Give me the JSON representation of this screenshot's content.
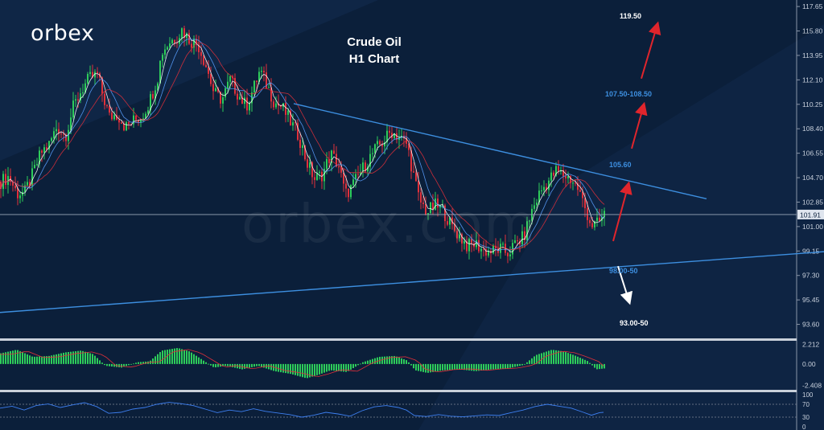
{
  "brand": {
    "logo_text": "orbex",
    "watermark_text": "orbex.com"
  },
  "chart_data": {
    "type": "candlestick",
    "title": "Crude Oil",
    "subtitle": "H1 Chart",
    "price_axis": {
      "ticks": [
        "117.65",
        "115.80",
        "113.95",
        "112.10",
        "110.25",
        "108.40",
        "106.55",
        "104.70",
        "102.85",
        "101.00",
        "99.15",
        "97.30",
        "95.45",
        "93.60"
      ],
      "range": [
        92.6,
        117.9
      ],
      "current_price": "101.91"
    },
    "close_path": [
      [
        0,
        104.4
      ],
      [
        10,
        104.8
      ],
      [
        20,
        103.5
      ],
      [
        30,
        103.6
      ],
      [
        40,
        105.0
      ],
      [
        50,
        106.6
      ],
      [
        60,
        107.2
      ],
      [
        70,
        108.6
      ],
      [
        80,
        107.8
      ],
      [
        90,
        110.0
      ],
      [
        100,
        111.3
      ],
      [
        110,
        112.2
      ],
      [
        120,
        112.5
      ],
      [
        126,
        111.1
      ],
      [
        135,
        109.3
      ],
      [
        145,
        109.5
      ],
      [
        155,
        108.5
      ],
      [
        165,
        109.0
      ],
      [
        175,
        109.3
      ],
      [
        185,
        110.5
      ],
      [
        195,
        112.3
      ],
      [
        200,
        114.2
      ],
      [
        210,
        115.0
      ],
      [
        220,
        115.4
      ],
      [
        225,
        115.9
      ],
      [
        235,
        115.1
      ],
      [
        245,
        114.8
      ],
      [
        255,
        113.2
      ],
      [
        265,
        111.1
      ],
      [
        275,
        110.6
      ],
      [
        285,
        112.1
      ],
      [
        295,
        111.0
      ],
      [
        305,
        110.1
      ],
      [
        315,
        111.6
      ],
      [
        322,
        112.8
      ],
      [
        330,
        111.8
      ],
      [
        340,
        110.4
      ],
      [
        350,
        110.0
      ],
      [
        360,
        108.9
      ],
      [
        370,
        107.9
      ],
      [
        380,
        105.9
      ],
      [
        390,
        104.6
      ],
      [
        400,
        105.0
      ],
      [
        410,
        106.5
      ],
      [
        420,
        105.6
      ],
      [
        428,
        103.4
      ],
      [
        435,
        103.9
      ],
      [
        445,
        104.9
      ],
      [
        455,
        105.9
      ],
      [
        465,
        106.8
      ],
      [
        475,
        107.4
      ],
      [
        485,
        108.2
      ],
      [
        495,
        107.8
      ],
      [
        505,
        107.2
      ],
      [
        512,
        105.1
      ],
      [
        520,
        103.0
      ],
      [
        530,
        102.1
      ],
      [
        540,
        102.6
      ],
      [
        550,
        102.2
      ],
      [
        560,
        101.0
      ],
      [
        570,
        100.3
      ],
      [
        580,
        99.5
      ],
      [
        590,
        99.7
      ],
      [
        600,
        99.2
      ],
      [
        610,
        99.1
      ],
      [
        620,
        99.3
      ],
      [
        630,
        99.0
      ],
      [
        640,
        99.7
      ],
      [
        650,
        100.2
      ],
      [
        660,
        102.2
      ],
      [
        670,
        103.6
      ],
      [
        680,
        104.4
      ],
      [
        690,
        105.2
      ],
      [
        700,
        104.9
      ],
      [
        710,
        104.5
      ],
      [
        718,
        103.8
      ],
      [
        726,
        102.4
      ],
      [
        734,
        101.1
      ],
      [
        742,
        101.2
      ],
      [
        750,
        101.9
      ]
    ],
    "trendlines": [
      {
        "name": "resistance",
        "points": [
          [
            365,
            110.3
          ],
          [
            878,
            103.1
          ]
        ],
        "color": "#3d8fe0"
      },
      {
        "name": "support",
        "points": [
          [
            0,
            94.5
          ],
          [
            1024,
            99.1
          ]
        ],
        "color": "#3d8fe0"
      },
      {
        "name": "current-price",
        "points": [
          [
            0,
            101.91
          ],
          [
            990,
            101.91
          ]
        ],
        "color": "#9aa7b8"
      }
    ],
    "annotations": [
      {
        "text": "119.50",
        "color": "#ffffff"
      },
      {
        "text": "107.50-108.50",
        "color": "#3d8fe0"
      },
      {
        "text": "105.60",
        "color": "#3d8fe0"
      },
      {
        "text": "98.00-50",
        "color": "#3d8fe0"
      },
      {
        "text": "93.00-50",
        "color": "#ffffff"
      }
    ],
    "arrows": [
      {
        "from": [
          762,
          99.9
        ],
        "to": [
          781,
          104.2
        ],
        "color": "#e0252c"
      },
      {
        "from": [
          785,
          106.9
        ],
        "to": [
          800,
          110.2
        ],
        "color": "#e0252c"
      },
      {
        "from": [
          797,
          112.2
        ],
        "to": [
          817,
          116.3
        ],
        "color": "#e0252c"
      },
      {
        "from": [
          768,
          98.0
        ],
        "to": [
          782,
          95.3
        ],
        "color": "#ffffff"
      }
    ],
    "macd": {
      "ticks": [
        "2.212",
        "0.00",
        "-2.408"
      ],
      "range": [
        -2.8,
        2.6
      ],
      "histogram_path": [
        [
          0,
          1.2
        ],
        [
          20,
          1.6
        ],
        [
          40,
          0.8
        ],
        [
          60,
          0.9
        ],
        [
          80,
          1.3
        ],
        [
          100,
          1.5
        ],
        [
          115,
          1.1
        ],
        [
          130,
          -0.2
        ],
        [
          150,
          -0.4
        ],
        [
          170,
          0.2
        ],
        [
          185,
          0.3
        ],
        [
          200,
          1.5
        ],
        [
          220,
          1.8
        ],
        [
          235,
          1.4
        ],
        [
          250,
          0.5
        ],
        [
          265,
          -0.4
        ],
        [
          280,
          -0.2
        ],
        [
          300,
          -0.6
        ],
        [
          320,
          -0.2
        ],
        [
          340,
          -0.8
        ],
        [
          360,
          -1.1
        ],
        [
          380,
          -1.6
        ],
        [
          395,
          -1.2
        ],
        [
          410,
          -0.7
        ],
        [
          430,
          -0.9
        ],
        [
          450,
          0.2
        ],
        [
          470,
          0.8
        ],
        [
          490,
          0.9
        ],
        [
          505,
          0.4
        ],
        [
          515,
          -0.7
        ],
        [
          530,
          -1.0
        ],
        [
          550,
          -0.7
        ],
        [
          570,
          -0.6
        ],
        [
          590,
          -0.8
        ],
        [
          610,
          -0.6
        ],
        [
          630,
          -0.5
        ],
        [
          650,
          -0.1
        ],
        [
          665,
          1.0
        ],
        [
          685,
          1.6
        ],
        [
          700,
          1.4
        ],
        [
          715,
          0.9
        ],
        [
          730,
          0.3
        ],
        [
          740,
          -0.6
        ],
        [
          750,
          -0.5
        ]
      ]
    },
    "rsi": {
      "ticks": [
        "100",
        "70",
        "30",
        "0"
      ],
      "range": [
        0,
        100
      ],
      "levels": [
        70,
        30
      ],
      "path": [
        [
          0,
          58
        ],
        [
          15,
          64
        ],
        [
          30,
          52
        ],
        [
          45,
          66
        ],
        [
          60,
          71
        ],
        [
          75,
          60
        ],
        [
          90,
          68
        ],
        [
          105,
          75
        ],
        [
          120,
          63
        ],
        [
          135,
          42
        ],
        [
          150,
          45
        ],
        [
          165,
          55
        ],
        [
          180,
          60
        ],
        [
          195,
          70
        ],
        [
          210,
          76
        ],
        [
          225,
          72
        ],
        [
          240,
          66
        ],
        [
          255,
          55
        ],
        [
          270,
          44
        ],
        [
          285,
          52
        ],
        [
          300,
          47
        ],
        [
          315,
          56
        ],
        [
          330,
          48
        ],
        [
          345,
          43
        ],
        [
          360,
          38
        ],
        [
          375,
          30
        ],
        [
          390,
          36
        ],
        [
          405,
          45
        ],
        [
          420,
          40
        ],
        [
          435,
          33
        ],
        [
          450,
          50
        ],
        [
          465,
          62
        ],
        [
          480,
          66
        ],
        [
          495,
          60
        ],
        [
          505,
          52
        ],
        [
          515,
          35
        ],
        [
          530,
          32
        ],
        [
          545,
          38
        ],
        [
          560,
          33
        ],
        [
          575,
          31
        ],
        [
          590,
          34
        ],
        [
          605,
          37
        ],
        [
          620,
          35
        ],
        [
          635,
          44
        ],
        [
          650,
          52
        ],
        [
          665,
          63
        ],
        [
          680,
          70
        ],
        [
          695,
          64
        ],
        [
          710,
          58
        ],
        [
          725,
          45
        ],
        [
          735,
          36
        ],
        [
          745,
          44
        ],
        [
          750,
          45
        ]
      ]
    }
  }
}
